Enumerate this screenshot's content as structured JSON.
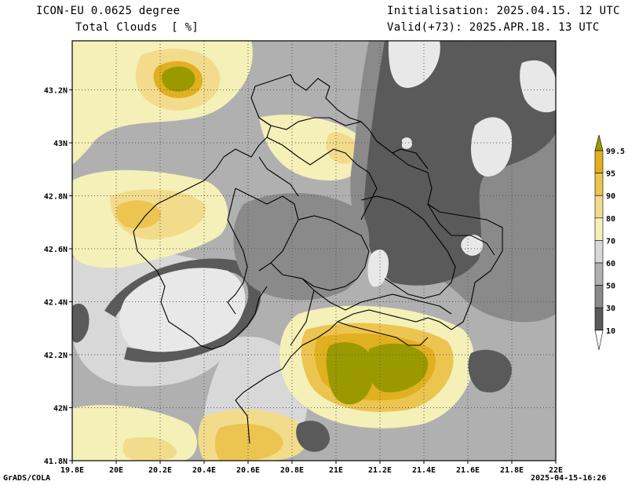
{
  "header": {
    "model": "ICON-EU 0.0625 degree",
    "variable": "Total Clouds  [ %]",
    "init": "Initialisation: 2025.04.15. 12 UTC",
    "valid": "Valid(+73): 2025.APR.18. 13 UTC"
  },
  "footer": {
    "left": "GrADS/COLA",
    "right": "2025-04-15-16:26"
  },
  "axes": {
    "lon_labels": [
      "19.8E",
      "20E",
      "20.2E",
      "20.4E",
      "20.6E",
      "20.8E",
      "21E",
      "21.2E",
      "21.4E",
      "21.6E",
      "21.8E",
      "22E"
    ],
    "lat_labels": [
      "43.2N",
      "43N",
      "42.8N",
      "42.6N",
      "42.4N",
      "42.2N",
      "42N",
      "41.8N"
    ]
  },
  "colorbar": {
    "levels": [
      "99.5",
      "95",
      "90",
      "80",
      "70",
      "60",
      "50",
      "30",
      "10"
    ],
    "colors": [
      "#9a9a00",
      "#e0b020",
      "#ecc450",
      "#f2dc8c",
      "#f4f0b8",
      "#d8d8d8",
      "#b0b0b0",
      "#8a8a8a",
      "#5a5a5a"
    ]
  },
  "palette": {
    "gray_dark": "#5a5a5a",
    "gray_mid": "#8a8a8a",
    "gray_light": "#b0b0b0",
    "gray_pale": "#d8d8d8",
    "white_area": "#e8e8e8",
    "cream": "#f4f0b8",
    "yellow_light": "#f2dc8c",
    "yellow": "#ecc450",
    "orange": "#e0b020",
    "olive": "#9a9a00"
  }
}
